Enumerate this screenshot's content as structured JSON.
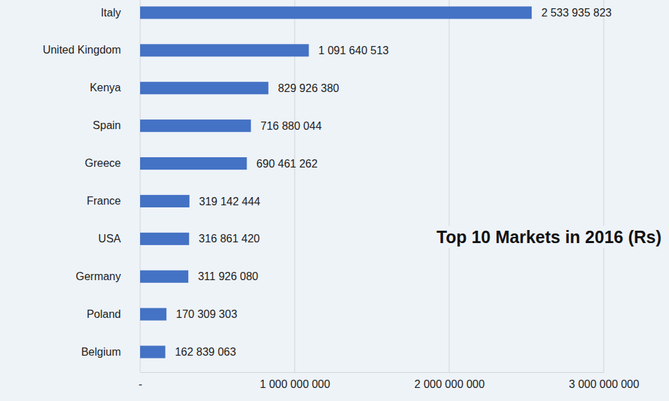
{
  "chart_data": {
    "type": "bar",
    "title": "Top 10 Markets in 2016 (Rs)",
    "orientation": "horizontal",
    "categories": [
      "Italy",
      "United Kingdom",
      "Kenya",
      "Spain",
      "Greece",
      "France",
      "USA",
      "Germany",
      "Poland",
      "Belgium"
    ],
    "values": [
      2533935823,
      1091640513,
      829926380,
      716880044,
      690461262,
      319142444,
      316861420,
      311926080,
      170309303,
      162839063
    ],
    "value_labels": [
      "2 533 935 823",
      "1 091 640 513",
      "829 926 380",
      "716 880 044",
      "690 461 262",
      "319 142 444",
      "316 861 420",
      "311 926 080",
      "170 309 303",
      "162 839 063"
    ],
    "color": "#4472c4",
    "xlim": [
      0,
      3000000000
    ],
    "xticks": [
      {
        "value": 0,
        "label": "-"
      },
      {
        "value": 1000000000,
        "label": "1 000 000 000"
      },
      {
        "value": 2000000000,
        "label": "2 000 000 000"
      },
      {
        "value": 3000000000,
        "label": "3 000 000 000"
      }
    ],
    "grid": true,
    "data_labels": true
  }
}
